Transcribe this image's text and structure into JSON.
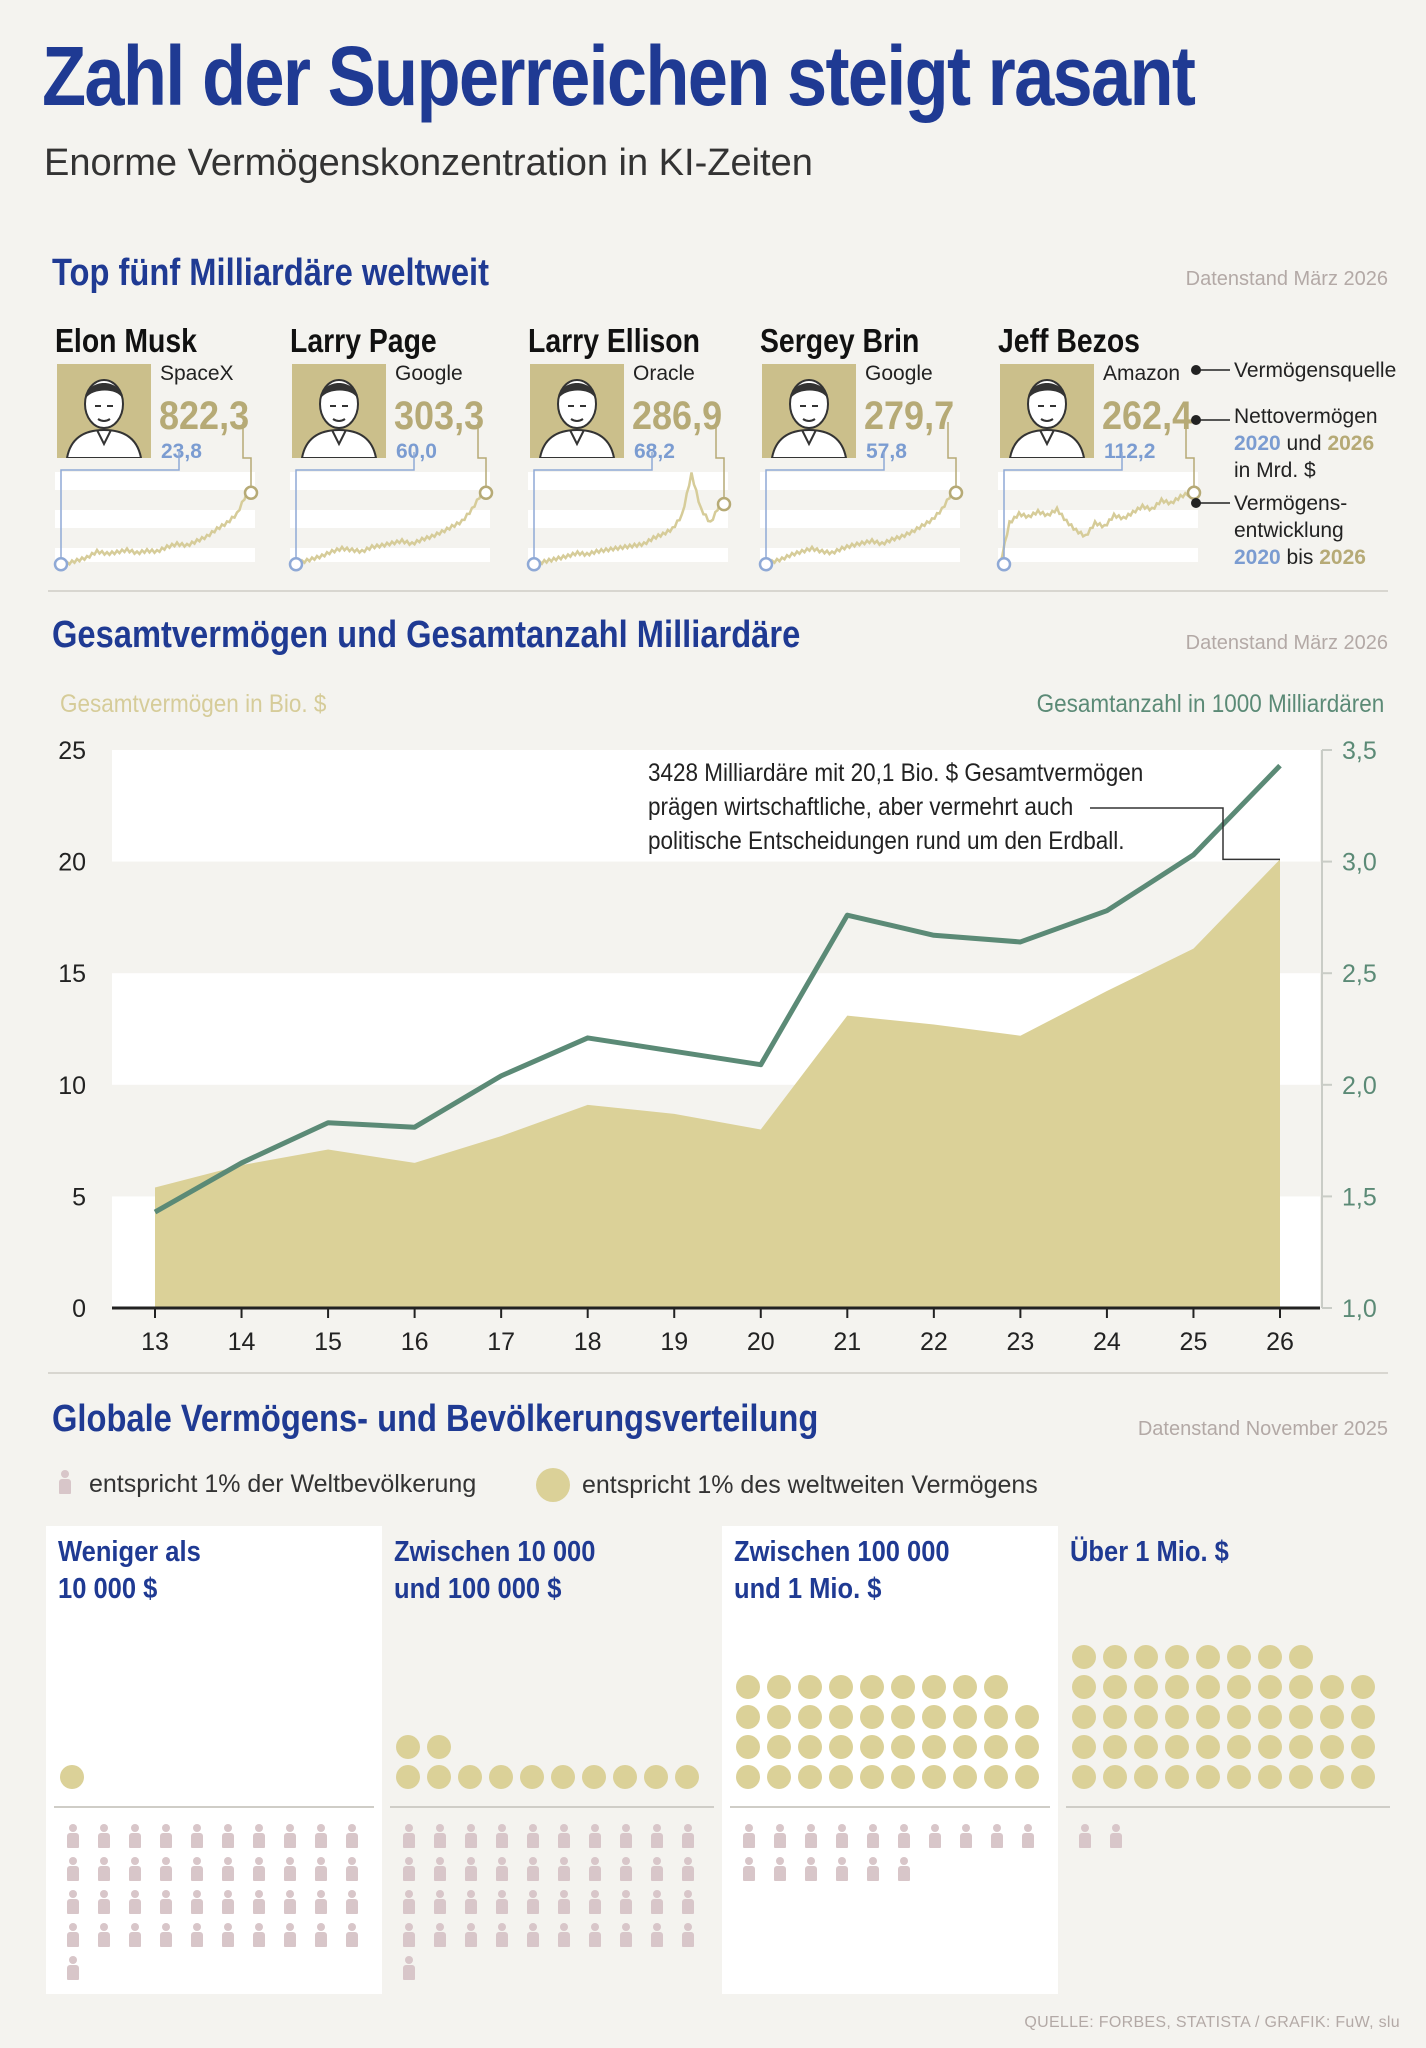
{
  "header": {
    "title": "Zahl der Superreichen steigt rasant",
    "subtitle": "Enorme Vermögenskonzentration in KI-Zeiten"
  },
  "top5": {
    "title": "Top fünf Milliardäre weltweit",
    "note": "Datenstand März 2026",
    "people": [
      {
        "name": "Elon Musk",
        "source": "SpaceX",
        "wealth_2026": "822,3",
        "wealth_2020": "23,8",
        "trend": [
          0.05,
          0.06,
          0.1,
          0.14,
          0.22,
          0.19,
          0.21,
          0.24,
          0.2,
          0.23,
          0.22,
          0.28,
          0.32,
          0.3,
          0.36,
          0.42,
          0.52,
          0.6,
          0.72,
          1.0
        ]
      },
      {
        "name": "Larry Page",
        "source": "Google",
        "wealth_2026": "303,3",
        "wealth_2020": "60,0",
        "trend": [
          0.05,
          0.08,
          0.12,
          0.16,
          0.22,
          0.26,
          0.24,
          0.22,
          0.28,
          0.3,
          0.33,
          0.36,
          0.32,
          0.38,
          0.42,
          0.48,
          0.55,
          0.62,
          0.78,
          1.0
        ]
      },
      {
        "name": "Larry Ellison",
        "source": "Oracle",
        "wealth_2026": "286,9",
        "wealth_2020": "68,2",
        "trend": [
          0.05,
          0.07,
          0.1,
          0.13,
          0.16,
          0.2,
          0.18,
          0.22,
          0.24,
          0.26,
          0.28,
          0.3,
          0.32,
          0.4,
          0.45,
          0.52,
          0.7,
          1.25,
          0.78,
          0.6,
          0.85
        ]
      },
      {
        "name": "Sergey Brin",
        "source": "Google",
        "wealth_2026": "279,7",
        "wealth_2020": "57,8",
        "trend": [
          0.05,
          0.08,
          0.12,
          0.18,
          0.22,
          0.26,
          0.22,
          0.2,
          0.26,
          0.3,
          0.33,
          0.36,
          0.32,
          0.38,
          0.42,
          0.48,
          0.56,
          0.64,
          0.78,
          1.0
        ]
      },
      {
        "name": "Jeff Bezos",
        "source": "Amazon",
        "wealth_2026": "262,4",
        "wealth_2020": "112,2",
        "trend": [
          0.05,
          0.6,
          0.72,
          0.68,
          0.75,
          0.7,
          0.78,
          0.62,
          0.5,
          0.42,
          0.6,
          0.55,
          0.7,
          0.66,
          0.74,
          0.82,
          0.78,
          0.9,
          0.86,
          0.95,
          1.0
        ]
      }
    ],
    "legend": {
      "source_label": "Vermögensquelle",
      "net_l1": "Nettovermögen",
      "net_l2a": "2020",
      "net_l2b": " und ",
      "net_l2c": "2026",
      "net_l3": "in Mrd. $",
      "dev_l1": "Vermögens-",
      "dev_l2": "entwicklung",
      "dev_l3a": "2020",
      "dev_l3b": " bis ",
      "dev_l3c": "2026"
    }
  },
  "totals": {
    "title": "Gesamtvermögen und Gesamtanzahl Milliardäre",
    "note": "Datenstand März 2026",
    "left_axis_label": "Gesamtvermögen in Bio. $",
    "right_axis_label": "Gesamtanzahl in 1000 Milliardären",
    "annotation": [
      "3428 Milliardäre mit 20,1 Bio. $ Gesamtvermögen",
      "prägen wirtschaftliche, aber vermehrt auch",
      "politische Entscheidungen rund um den Erdball."
    ]
  },
  "chart_data": {
    "type": "area",
    "x": [
      "13",
      "14",
      "15",
      "16",
      "17",
      "18",
      "19",
      "20",
      "21",
      "22",
      "23",
      "24",
      "25",
      "26"
    ],
    "series": [
      {
        "name": "Gesamtvermögen in Bio. $",
        "type": "area",
        "axis": "left",
        "values": [
          5.4,
          6.4,
          7.1,
          6.5,
          7.7,
          9.1,
          8.7,
          8.0,
          13.1,
          12.7,
          12.2,
          14.2,
          16.1,
          20.1
        ]
      },
      {
        "name": "Gesamtanzahl in 1000 Milliardären",
        "type": "line",
        "axis": "right",
        "values": [
          1.43,
          1.65,
          1.83,
          1.81,
          2.04,
          2.21,
          2.15,
          2.09,
          2.76,
          2.67,
          2.64,
          2.78,
          3.03,
          3.43
        ]
      }
    ],
    "ylim_left": [
      0,
      25
    ],
    "yticks_left": [
      "0",
      "5",
      "10",
      "15",
      "20",
      "25"
    ],
    "ylim_right": [
      1.0,
      3.5
    ],
    "yticks_right": [
      "1,0",
      "1,5",
      "2,0",
      "2,5",
      "3,0",
      "3,5"
    ],
    "colors": {
      "area": "#dbd198",
      "line": "#5b8a76",
      "axis_left": "#d6cc99",
      "axis_right": "#5b8a76"
    }
  },
  "distribution": {
    "title": "Globale Vermögens- und Bevölkerungsverteilung",
    "note": "Datenstand November 2025",
    "legend_people": "entspricht 1% der Weltbevölkerung",
    "legend_wealth": "entspricht 1% des weltweiten Vermögens",
    "groups": [
      {
        "title_l1": "Weniger als",
        "title_l2": "10 000 $",
        "wealth_pct": 1,
        "population_pct": 41
      },
      {
        "title_l1": "Zwischen 10 000",
        "title_l2": "und 100 000 $",
        "wealth_pct": 12,
        "population_pct": 41
      },
      {
        "title_l1": "Zwischen 100 000",
        "title_l2": "und 1 Mio. $",
        "wealth_pct": 39,
        "population_pct": 16
      },
      {
        "title_l1": "Über 1 Mio. $",
        "title_l2": "",
        "wealth_pct": 48,
        "population_pct": 2
      }
    ]
  },
  "footer": {
    "source": "QUELLE: FORBES, STATISTA / GRAFIK: FuW, slu"
  }
}
